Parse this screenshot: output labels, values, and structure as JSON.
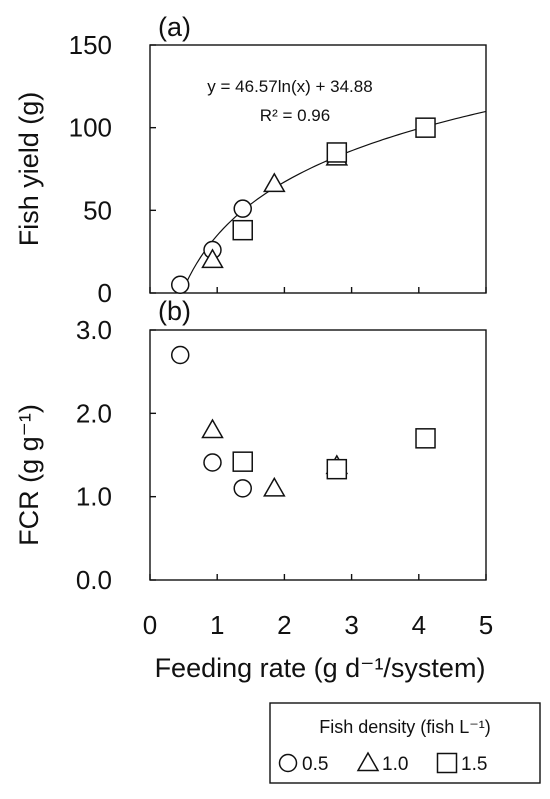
{
  "chart_data": [
    {
      "panel_label": "(a)",
      "type": "scatter",
      "ylabel": "Fish yield (g)",
      "xlim": [
        0,
        5
      ],
      "ylim": [
        0,
        150
      ],
      "yticks": [
        "0",
        "50",
        "100",
        "150"
      ],
      "trendline": {
        "type": "logarithmic",
        "a": 46.57,
        "b": 34.88,
        "equation": "y = 46.57ln(x) + 34.88",
        "r2_label": "R² = 0.96"
      },
      "series": [
        {
          "density": "0.5",
          "marker": "circle",
          "points": [
            [
              0.45,
              5
            ],
            [
              0.93,
              26
            ],
            [
              1.38,
              51
            ]
          ]
        },
        {
          "density": "1.0",
          "marker": "triangle",
          "points": [
            [
              0.93,
              20
            ],
            [
              1.85,
              66
            ],
            [
              2.78,
              82
            ]
          ]
        },
        {
          "density": "1.5",
          "marker": "square",
          "points": [
            [
              1.38,
              38
            ],
            [
              2.78,
              85
            ],
            [
              4.1,
              100
            ]
          ]
        }
      ]
    },
    {
      "panel_label": "(b)",
      "type": "scatter",
      "ylabel": "FCR (g g⁻¹)",
      "xlabel": "Feeding rate (g d⁻¹/system)",
      "xlim": [
        0,
        5
      ],
      "ylim": [
        0,
        3
      ],
      "xticks": [
        "0",
        "1",
        "2",
        "3",
        "4",
        "5"
      ],
      "yticks": [
        "0.0",
        "1.0",
        "2.0",
        "3.0"
      ],
      "series": [
        {
          "density": "0.5",
          "marker": "circle",
          "points": [
            [
              0.45,
              2.7
            ],
            [
              0.93,
              1.41
            ],
            [
              1.38,
              1.1
            ]
          ]
        },
        {
          "density": "1.0",
          "marker": "triangle",
          "points": [
            [
              0.93,
              1.8
            ],
            [
              1.85,
              1.1
            ],
            [
              2.78,
              1.37
            ]
          ]
        },
        {
          "density": "1.5",
          "marker": "square",
          "points": [
            [
              1.38,
              1.42
            ],
            [
              2.78,
              1.33
            ],
            [
              4.1,
              1.7
            ]
          ]
        }
      ]
    }
  ],
  "legend": {
    "title": "Fish density (fish L⁻¹)",
    "items": [
      {
        "label": "0.5",
        "marker": "circle"
      },
      {
        "label": "1.0",
        "marker": "triangle"
      },
      {
        "label": "1.5",
        "marker": "square"
      }
    ]
  }
}
